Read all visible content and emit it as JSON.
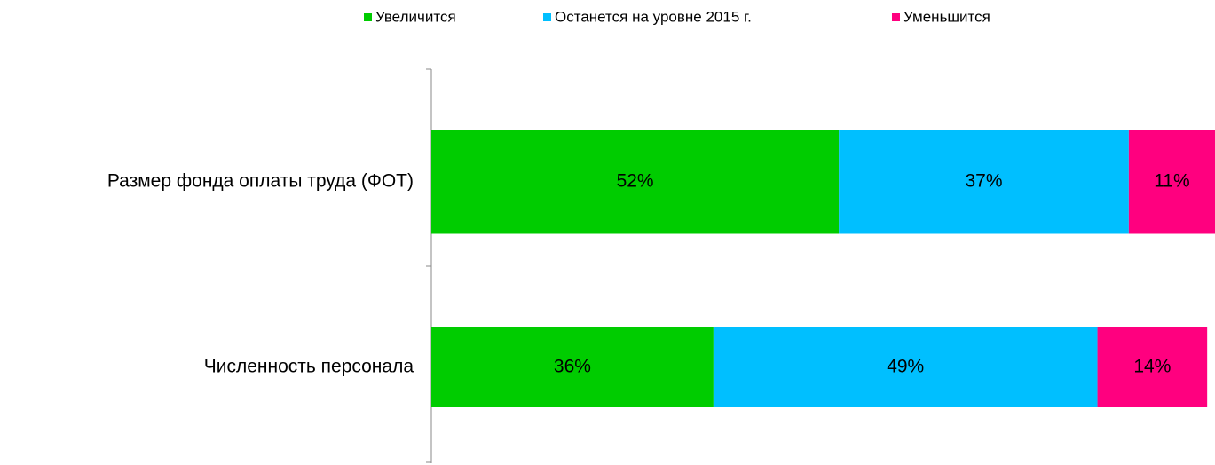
{
  "chart_data": {
    "type": "stacked-bar-horizontal",
    "categories": [
      "Размер фонда оплаты труда (ФОТ)",
      "Численность персонала"
    ],
    "series": [
      {
        "name": "Увеличится",
        "color": "#00cc00",
        "values": [
          52,
          36
        ],
        "value_labels": [
          "52%",
          "36%"
        ]
      },
      {
        "name": "Останется на уровне 2015 г.",
        "color": "#00bfff",
        "values": [
          37,
          49
        ],
        "value_labels": [
          "37%",
          "49%"
        ]
      },
      {
        "name": "Уменьшится",
        "color": "#ff007f",
        "values": [
          11,
          14
        ],
        "value_labels": [
          "11%",
          "14%"
        ]
      }
    ],
    "legend": "top"
  }
}
